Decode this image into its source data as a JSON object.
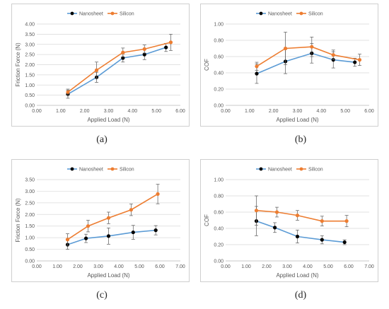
{
  "captions": [
    "(a)",
    "(b)",
    "(c)",
    "(d)"
  ],
  "chart_data": [
    {
      "type": "line",
      "xlabel": "Applied Load (N)",
      "ylabel": "Friction Force (N)",
      "xlim": [
        0,
        6
      ],
      "ylim": [
        0,
        4
      ],
      "xticks": [
        "0.00",
        "1.00",
        "2.00",
        "3.00",
        "4.00",
        "5.00",
        "6.00"
      ],
      "yticks": [
        "0.00",
        "0.50",
        "1.00",
        "1.50",
        "2.00",
        "2.50",
        "3.00",
        "3.50",
        "4.00"
      ],
      "legend": "top-left",
      "series": [
        {
          "name": "Nanosheet",
          "color": "#5b9bd5",
          "marker_color": "#000000",
          "x": [
            1.3,
            2.5,
            3.6,
            4.5,
            5.4
          ],
          "y": [
            0.55,
            1.38,
            2.33,
            2.5,
            2.85
          ],
          "err": [
            0.2,
            0.25,
            0.2,
            0.25,
            0.2
          ]
        },
        {
          "name": "Silicon",
          "color": "#ed7d31",
          "marker_color": "#ed7d31",
          "x": [
            1.3,
            2.5,
            3.6,
            4.5,
            5.6
          ],
          "y": [
            0.65,
            1.73,
            2.6,
            2.77,
            3.1
          ],
          "err": [
            0.15,
            0.4,
            0.22,
            0.2,
            0.4
          ]
        }
      ]
    },
    {
      "type": "line",
      "xlabel": "Applied Load (N)",
      "ylabel": "COF",
      "xlim": [
        0,
        6
      ],
      "ylim": [
        0,
        1
      ],
      "xticks": [
        "0.00",
        "1.00",
        "2.00",
        "3.00",
        "4.00",
        "5.00",
        "6.00"
      ],
      "yticks": [
        "0.00",
        "0.20",
        "0.40",
        "0.60",
        "0.80",
        "1.00"
      ],
      "legend": "top-left",
      "series": [
        {
          "name": "Nanosheet",
          "color": "#5b9bd5",
          "marker_color": "#000000",
          "x": [
            1.3,
            2.5,
            3.6,
            4.5,
            5.4
          ],
          "y": [
            0.39,
            0.54,
            0.64,
            0.56,
            0.53
          ],
          "err": [
            0.12,
            0.15,
            0.12,
            0.1,
            0.05
          ]
        },
        {
          "name": "Silicon",
          "color": "#ed7d31",
          "marker_color": "#ed7d31",
          "x": [
            1.3,
            2.5,
            3.6,
            4.5,
            5.6
          ],
          "y": [
            0.48,
            0.7,
            0.72,
            0.62,
            0.56
          ],
          "err": [
            0.05,
            0.2,
            0.12,
            0.06,
            0.07
          ]
        }
      ]
    },
    {
      "type": "line",
      "xlabel": "Applied Load (N)",
      "ylabel": "Friction Force (N)",
      "xlim": [
        0,
        7
      ],
      "ylim": [
        0,
        3.5
      ],
      "xticks": [
        "0.00",
        "1.00",
        "2.00",
        "3.00",
        "4.00",
        "5.00",
        "6.00",
        "7.00"
      ],
      "yticks": [
        "0.00",
        "0.50",
        "1.00",
        "1.50",
        "2.00",
        "2.50",
        "3.00",
        "3.50"
      ],
      "legend": "top-left",
      "series": [
        {
          "name": "Nanosheet",
          "color": "#5b9bd5",
          "marker_color": "#000000",
          "x": [
            1.5,
            2.4,
            3.5,
            4.7,
            5.8
          ],
          "y": [
            0.7,
            0.97,
            1.07,
            1.23,
            1.32
          ],
          "err": [
            0.2,
            0.18,
            0.35,
            0.3,
            0.2
          ]
        },
        {
          "name": "Silicon",
          "color": "#ed7d31",
          "marker_color": "#ed7d31",
          "x": [
            1.5,
            2.5,
            3.5,
            4.6,
            5.9
          ],
          "y": [
            0.92,
            1.5,
            1.85,
            2.2,
            2.88
          ],
          "err": [
            0.25,
            0.25,
            0.25,
            0.25,
            0.42
          ]
        }
      ]
    },
    {
      "type": "line",
      "xlabel": "Applied Load (N)",
      "ylabel": "COF",
      "xlim": [
        0,
        7
      ],
      "ylim": [
        0,
        1
      ],
      "xticks": [
        "0.00",
        "1.00",
        "2.00",
        "3.00",
        "4.00",
        "5.00",
        "6.00",
        "7.00"
      ],
      "yticks": [
        "0.00",
        "0.20",
        "0.40",
        "0.60",
        "0.80",
        "1.00"
      ],
      "legend": "top-left",
      "series": [
        {
          "name": "Nanosheet",
          "color": "#5b9bd5",
          "marker_color": "#000000",
          "x": [
            1.5,
            2.4,
            3.5,
            4.7,
            5.8
          ],
          "y": [
            0.49,
            0.41,
            0.3,
            0.26,
            0.23
          ],
          "err": [
            0.18,
            0.06,
            0.08,
            0.05,
            0.03
          ]
        },
        {
          "name": "Silicon",
          "color": "#ed7d31",
          "marker_color": "#ed7d31",
          "x": [
            1.5,
            2.5,
            3.5,
            4.7,
            5.9
          ],
          "y": [
            0.62,
            0.6,
            0.56,
            0.49,
            0.49
          ],
          "err": [
            0.18,
            0.06,
            0.06,
            0.06,
            0.07
          ]
        }
      ]
    }
  ]
}
